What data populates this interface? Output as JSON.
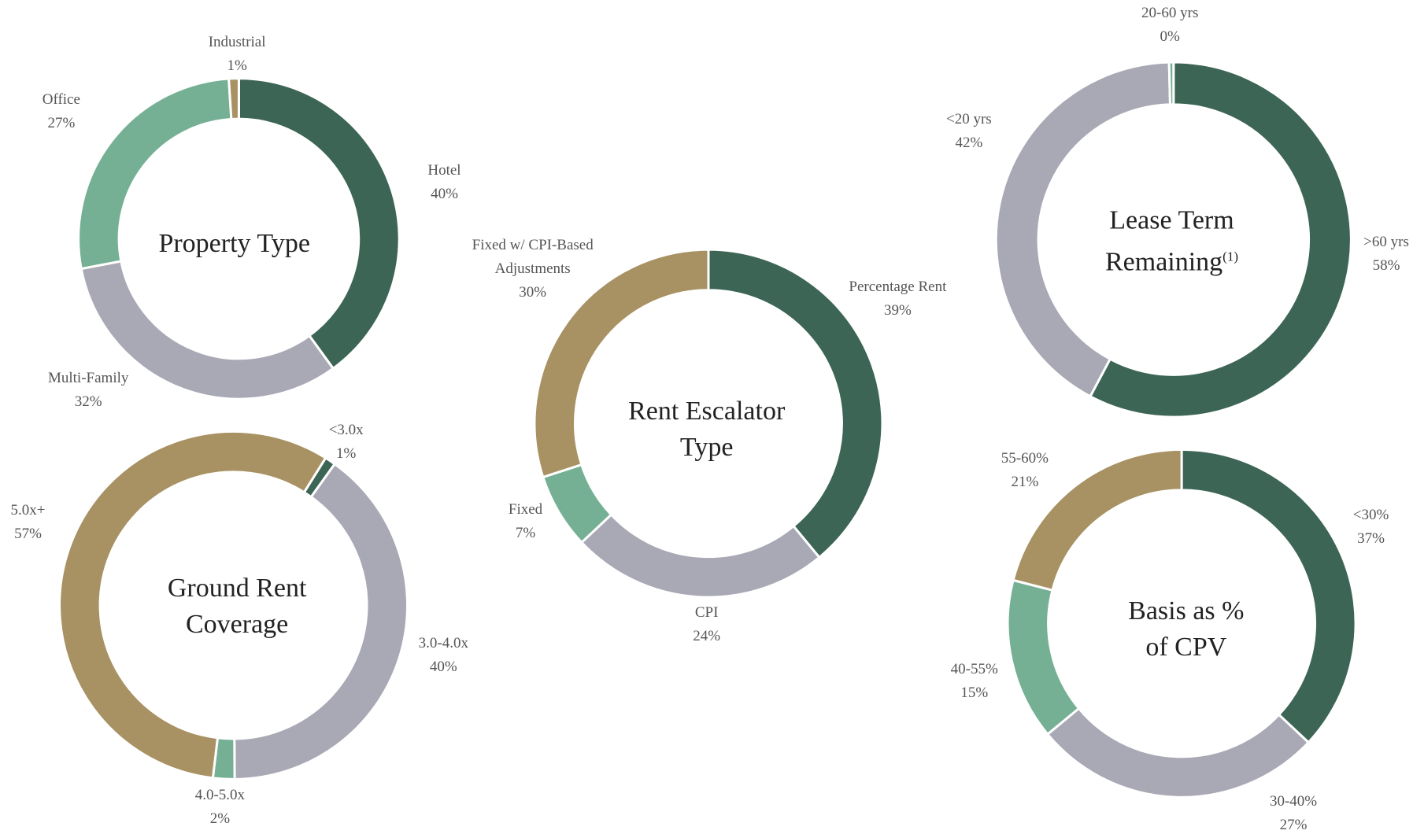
{
  "chart_data": [
    {
      "type": "pie",
      "donut": true,
      "title": "Property Type",
      "start_angle": 0,
      "categories": [
        "Hotel",
        "Multi-Family",
        "Office",
        "Industrial"
      ],
      "values": [
        40,
        32,
        27,
        1
      ],
      "value_labels": [
        "40%",
        "32%",
        "27%",
        "1%"
      ],
      "colors": [
        "#3d6555",
        "#a9a8b5",
        "#76b094",
        "#a89263"
      ]
    },
    {
      "type": "pie",
      "donut": true,
      "title": "Ground Rent Coverage",
      "start_angle": 32,
      "categories": [
        "<3.0x",
        "3.0-4.0x",
        "4.0-5.0x",
        "5.0x+"
      ],
      "values": [
        1,
        40,
        2,
        57
      ],
      "value_labels": [
        "1%",
        "40%",
        "2%",
        "57%"
      ],
      "colors": [
        "#3d6555",
        "#a9a8b5",
        "#76b094",
        "#a89263"
      ]
    },
    {
      "type": "pie",
      "donut": true,
      "title": "Rent Escalator Type",
      "start_angle": 0,
      "categories": [
        "Percentage Rent",
        "CPI",
        "Fixed",
        "Fixed w/ CPI-Based Adjustments"
      ],
      "values": [
        39,
        24,
        7,
        30
      ],
      "value_labels": [
        "39%",
        "24%",
        "7%",
        "30%"
      ],
      "colors": [
        "#3d6555",
        "#a9a8b5",
        "#76b094",
        "#a89263"
      ]
    },
    {
      "type": "pie",
      "donut": true,
      "title": "Lease Term Remaining",
      "title_note": "(1)",
      "start_angle": 0,
      "categories": [
        ">60 yrs",
        "<20 yrs",
        "20-60 yrs"
      ],
      "values": [
        58,
        42,
        0.4
      ],
      "value_labels": [
        "58%",
        "42%",
        "0%"
      ],
      "colors": [
        "#3d6555",
        "#a9a8b5",
        "#76b094"
      ]
    },
    {
      "type": "pie",
      "donut": true,
      "title": "Basis as % of CPV",
      "start_angle": 0,
      "categories": [
        "<30%",
        "30-40%",
        "40-55%",
        "55-60%"
      ],
      "values": [
        37,
        27,
        15,
        21
      ],
      "value_labels": [
        "37%",
        "27%",
        "15%",
        "21%"
      ],
      "colors": [
        "#3d6555",
        "#a9a8b5",
        "#76b094",
        "#a89263"
      ]
    }
  ]
}
